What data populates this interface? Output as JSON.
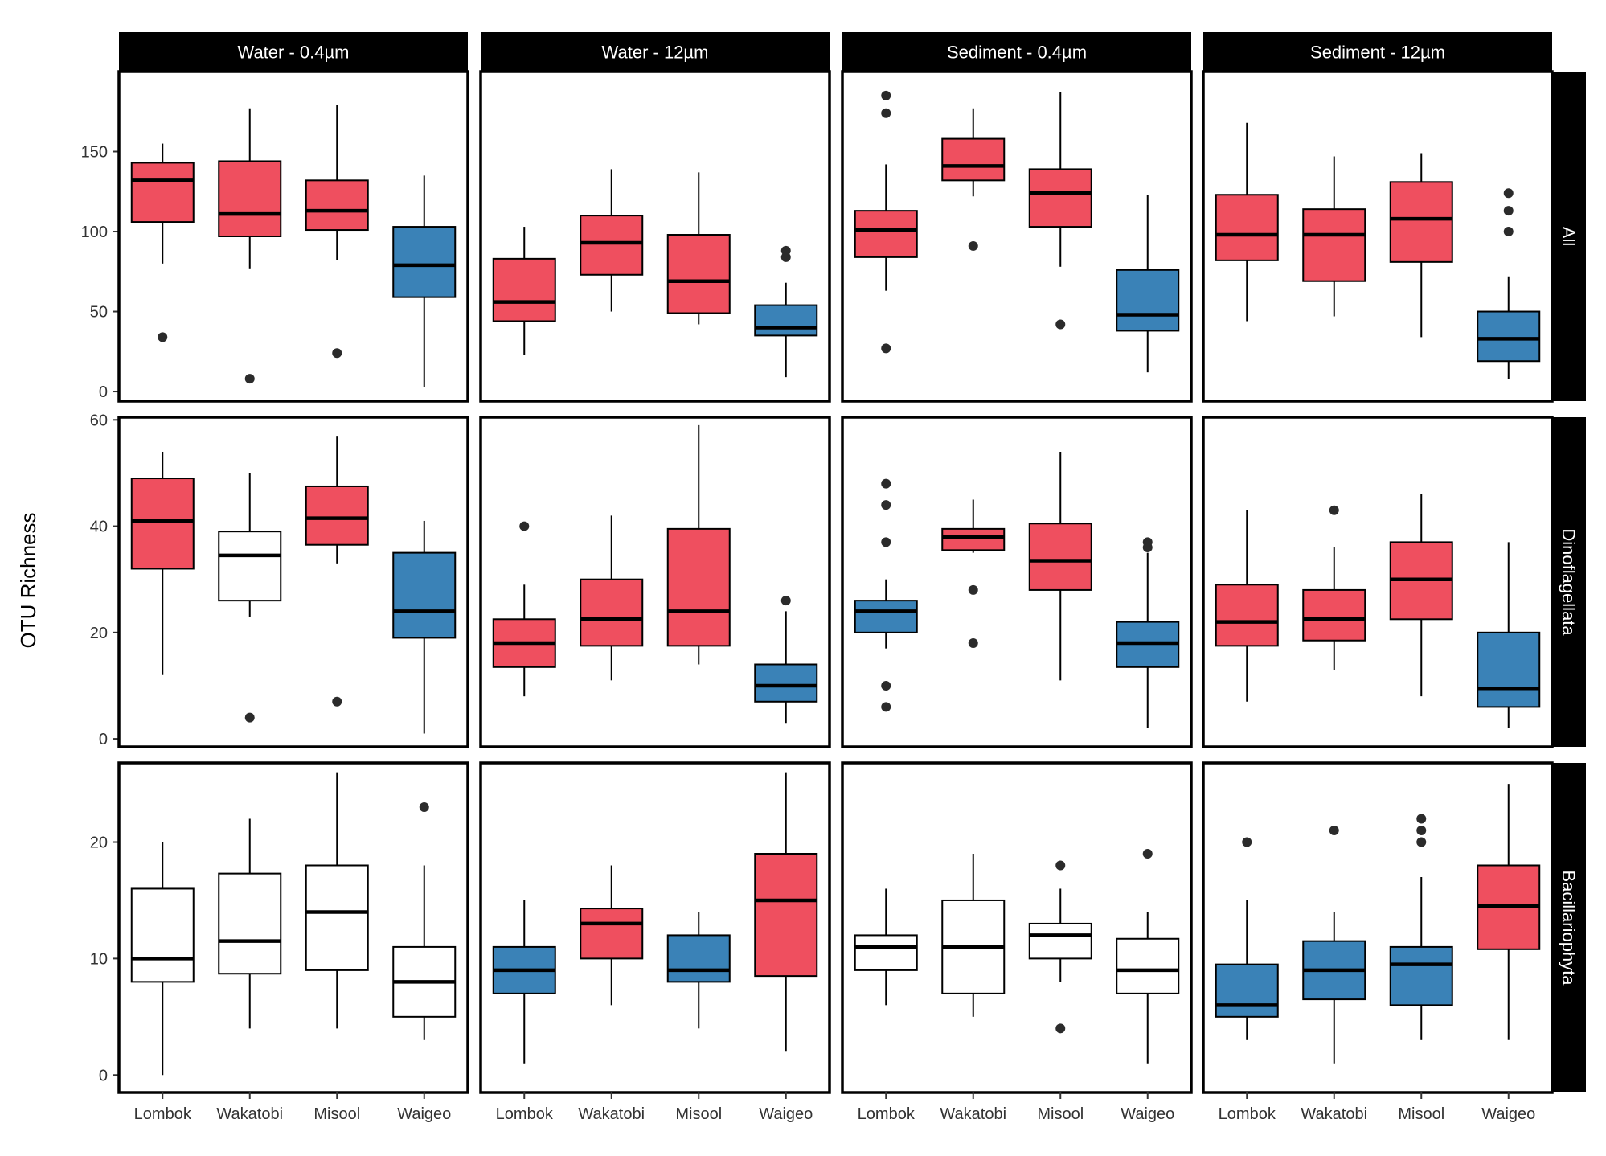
{
  "chart_data": {
    "type": "boxplot",
    "ylabel": "OTU Richness",
    "xlabel": "",
    "categories": [
      "Lombok",
      "Wakatobi",
      "Misool",
      "Waigeo"
    ],
    "columns": [
      "Water - 0.4µm",
      "Water - 12µm",
      "Sediment - 0.4µm",
      "Sediment - 12µm"
    ],
    "rows": [
      "All",
      "Dinoflagellata",
      "Bacillariophyta"
    ],
    "fill_colors": {
      "red": "#EF4F5F",
      "blue": "#3A82B7",
      "white": "#FFFFFF"
    },
    "row_axes": [
      {
        "ylim": [
          -6,
          200
        ],
        "ticks": [
          0,
          50,
          100,
          150
        ]
      },
      {
        "ylim": [
          -1.5,
          60.5
        ],
        "ticks": [
          0,
          20,
          40,
          60
        ]
      },
      {
        "ylim": [
          -1.5,
          26.8
        ],
        "ticks": [
          0,
          10,
          20
        ]
      }
    ],
    "panels": [
      [
        {
          "boxes": [
            {
              "fill": "red",
              "min": 80,
              "q1": 106,
              "median": 132,
              "q3": 143,
              "max": 155,
              "outliers": [
                34
              ]
            },
            {
              "fill": "red",
              "min": 77,
              "q1": 97,
              "median": 111,
              "q3": 144,
              "max": 177,
              "outliers": [
                8
              ]
            },
            {
              "fill": "red",
              "min": 82,
              "q1": 101,
              "median": 113,
              "q3": 132,
              "max": 179,
              "outliers": [
                24
              ]
            },
            {
              "fill": "blue",
              "min": 3,
              "q1": 59,
              "median": 79,
              "q3": 103,
              "max": 135,
              "outliers": []
            }
          ]
        },
        {
          "boxes": [
            {
              "fill": "red",
              "min": 23,
              "q1": 44,
              "median": 56,
              "q3": 83,
              "max": 103,
              "outliers": []
            },
            {
              "fill": "red",
              "min": 50,
              "q1": 73,
              "median": 93,
              "q3": 110,
              "max": 139,
              "outliers": []
            },
            {
              "fill": "red",
              "min": 42,
              "q1": 49,
              "median": 69,
              "q3": 98,
              "max": 137,
              "outliers": []
            },
            {
              "fill": "blue",
              "min": 9,
              "q1": 35,
              "median": 40,
              "q3": 54,
              "max": 68,
              "outliers": [
                84,
                88
              ]
            }
          ]
        },
        {
          "boxes": [
            {
              "fill": "red",
              "min": 63,
              "q1": 84,
              "median": 101,
              "q3": 113,
              "max": 142,
              "outliers": [
                27,
                174,
                185
              ]
            },
            {
              "fill": "red",
              "min": 122,
              "q1": 132,
              "median": 141,
              "q3": 158,
              "max": 177,
              "outliers": [
                91
              ]
            },
            {
              "fill": "red",
              "min": 78,
              "q1": 103,
              "median": 124,
              "q3": 139,
              "max": 187,
              "outliers": [
                42
              ]
            },
            {
              "fill": "blue",
              "min": 12,
              "q1": 38,
              "median": 48,
              "q3": 76,
              "max": 123,
              "outliers": []
            }
          ]
        },
        {
          "boxes": [
            {
              "fill": "red",
              "min": 44,
              "q1": 82,
              "median": 98,
              "q3": 123,
              "max": 168,
              "outliers": []
            },
            {
              "fill": "red",
              "min": 47,
              "q1": 69,
              "median": 98,
              "q3": 114,
              "max": 147,
              "outliers": []
            },
            {
              "fill": "red",
              "min": 34,
              "q1": 81,
              "median": 108,
              "q3": 131,
              "max": 149,
              "outliers": []
            },
            {
              "fill": "blue",
              "min": 8,
              "q1": 19,
              "median": 33,
              "q3": 50,
              "max": 72,
              "outliers": [
                100,
                113,
                124
              ]
            }
          ]
        }
      ],
      [
        {
          "boxes": [
            {
              "fill": "red",
              "min": 12,
              "q1": 32,
              "median": 41,
              "q3": 49,
              "max": 54,
              "outliers": []
            },
            {
              "fill": "white",
              "min": 23,
              "q1": 26,
              "median": 34.5,
              "q3": 39,
              "max": 50,
              "outliers": [
                4
              ]
            },
            {
              "fill": "red",
              "min": 33,
              "q1": 36.5,
              "median": 41.5,
              "q3": 47.5,
              "max": 57,
              "outliers": [
                7
              ]
            },
            {
              "fill": "blue",
              "min": 1,
              "q1": 19,
              "median": 24,
              "q3": 35,
              "max": 41,
              "outliers": []
            }
          ]
        },
        {
          "boxes": [
            {
              "fill": "red",
              "min": 8,
              "q1": 13.5,
              "median": 18,
              "q3": 22.5,
              "max": 29,
              "outliers": [
                40
              ]
            },
            {
              "fill": "red",
              "min": 11,
              "q1": 17.5,
              "median": 22.5,
              "q3": 30,
              "max": 42,
              "outliers": []
            },
            {
              "fill": "red",
              "min": 14,
              "q1": 17.5,
              "median": 24,
              "q3": 39.5,
              "max": 59,
              "outliers": []
            },
            {
              "fill": "blue",
              "min": 3,
              "q1": 7,
              "median": 10,
              "q3": 14,
              "max": 24,
              "outliers": [
                26
              ]
            }
          ]
        },
        {
          "boxes": [
            {
              "fill": "blue",
              "min": 17,
              "q1": 20,
              "median": 24,
              "q3": 26,
              "max": 30,
              "outliers": [
                6,
                10,
                37,
                44,
                48
              ]
            },
            {
              "fill": "red",
              "min": 35,
              "q1": 35.5,
              "median": 38,
              "q3": 39.5,
              "max": 45,
              "outliers": [
                18,
                28
              ]
            },
            {
              "fill": "red",
              "min": 11,
              "q1": 28,
              "median": 33.5,
              "q3": 40.5,
              "max": 54,
              "outliers": []
            },
            {
              "fill": "blue",
              "min": 2,
              "q1": 13.5,
              "median": 18,
              "q3": 22,
              "max": 35,
              "outliers": [
                36,
                37
              ]
            }
          ]
        },
        {
          "boxes": [
            {
              "fill": "red",
              "min": 7,
              "q1": 17.5,
              "median": 22,
              "q3": 29,
              "max": 43,
              "outliers": []
            },
            {
              "fill": "red",
              "min": 13,
              "q1": 18.5,
              "median": 22.5,
              "q3": 28,
              "max": 36,
              "outliers": [
                43
              ]
            },
            {
              "fill": "red",
              "min": 8,
              "q1": 22.5,
              "median": 30,
              "q3": 37,
              "max": 46,
              "outliers": []
            },
            {
              "fill": "blue",
              "min": 2,
              "q1": 6,
              "median": 9.5,
              "q3": 20,
              "max": 37,
              "outliers": []
            }
          ]
        }
      ],
      [
        {
          "boxes": [
            {
              "fill": "white",
              "min": 0,
              "q1": 8,
              "median": 10,
              "q3": 16,
              "max": 20,
              "outliers": []
            },
            {
              "fill": "white",
              "min": 4,
              "q1": 8.7,
              "median": 11.5,
              "q3": 17.3,
              "max": 22,
              "outliers": []
            },
            {
              "fill": "white",
              "min": 4,
              "q1": 9,
              "median": 14,
              "q3": 18,
              "max": 26,
              "outliers": []
            },
            {
              "fill": "white",
              "min": 3,
              "q1": 5,
              "median": 8,
              "q3": 11,
              "max": 18,
              "outliers": [
                23
              ]
            }
          ]
        },
        {
          "boxes": [
            {
              "fill": "blue",
              "min": 1,
              "q1": 7,
              "median": 9,
              "q3": 11,
              "max": 15,
              "outliers": []
            },
            {
              "fill": "red",
              "min": 6,
              "q1": 10,
              "median": 13,
              "q3": 14.3,
              "max": 18,
              "outliers": []
            },
            {
              "fill": "blue",
              "min": 4,
              "q1": 8,
              "median": 9,
              "q3": 12,
              "max": 14,
              "outliers": []
            },
            {
              "fill": "red",
              "min": 2,
              "q1": 8.5,
              "median": 15,
              "q3": 19,
              "max": 26,
              "outliers": []
            }
          ]
        },
        {
          "boxes": [
            {
              "fill": "white",
              "min": 6,
              "q1": 9,
              "median": 11,
              "q3": 12,
              "max": 16,
              "outliers": []
            },
            {
              "fill": "white",
              "min": 5,
              "q1": 7,
              "median": 11,
              "q3": 15,
              "max": 19,
              "outliers": []
            },
            {
              "fill": "white",
              "min": 8,
              "q1": 10,
              "median": 12,
              "q3": 13,
              "max": 16,
              "outliers": [
                4,
                18
              ]
            },
            {
              "fill": "white",
              "min": 1,
              "q1": 7,
              "median": 9,
              "q3": 11.7,
              "max": 14,
              "outliers": [
                19
              ]
            }
          ]
        },
        {
          "boxes": [
            {
              "fill": "blue",
              "min": 3,
              "q1": 5,
              "median": 6,
              "q3": 9.5,
              "max": 15,
              "outliers": [
                20
              ]
            },
            {
              "fill": "blue",
              "min": 1,
              "q1": 6.5,
              "median": 9,
              "q3": 11.5,
              "max": 14,
              "outliers": [
                21
              ]
            },
            {
              "fill": "blue",
              "min": 3,
              "q1": 6,
              "median": 9.5,
              "q3": 11,
              "max": 17,
              "outliers": [
                20,
                21,
                22
              ]
            },
            {
              "fill": "red",
              "min": 3,
              "q1": 10.8,
              "median": 14.5,
              "q3": 18,
              "max": 25,
              "outliers": []
            }
          ]
        }
      ]
    ]
  }
}
